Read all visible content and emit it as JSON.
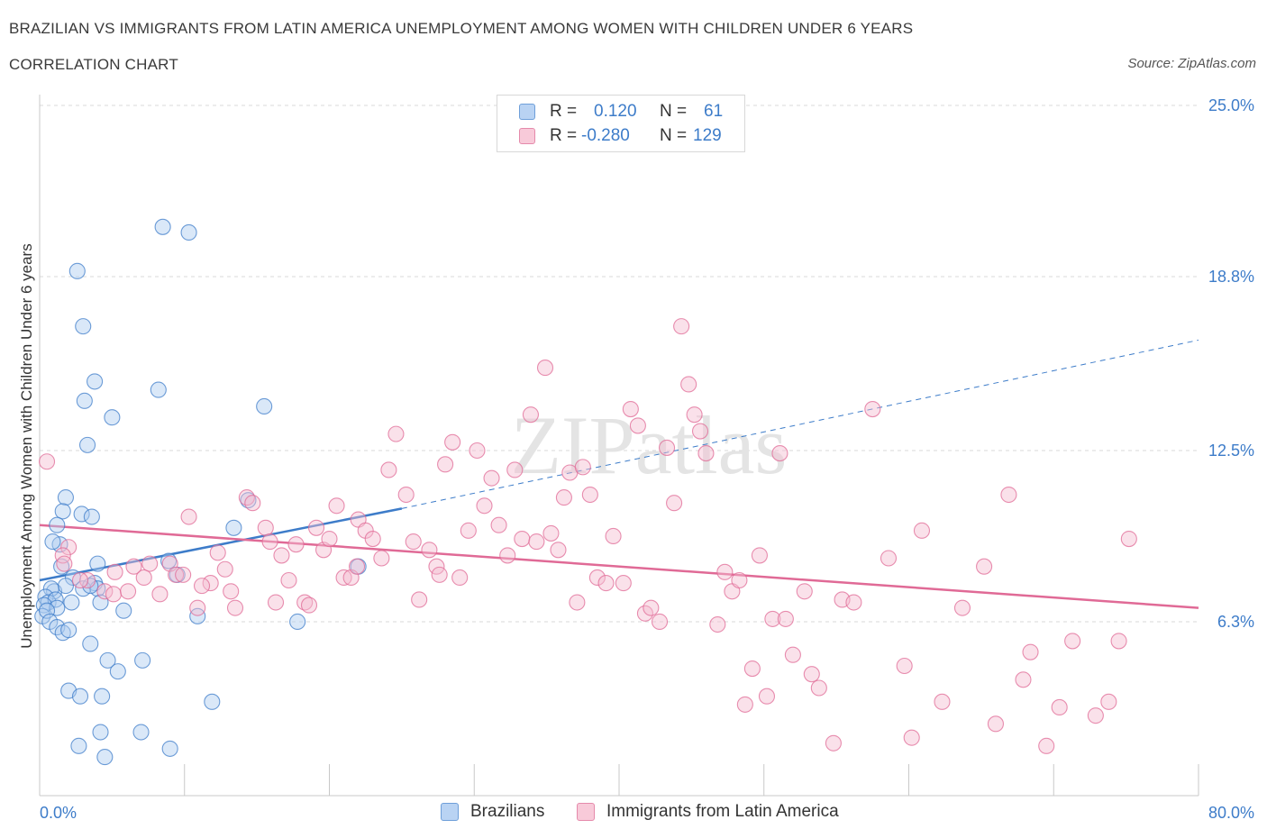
{
  "header": {
    "title": "BRAZILIAN VS IMMIGRANTS FROM LATIN AMERICA UNEMPLOYMENT AMONG WOMEN WITH CHILDREN UNDER 6 YEARS",
    "subtitle": "CORRELATION CHART",
    "source": "Source: ZipAtlas.com"
  },
  "watermark": "ZIPatlas",
  "colors": {
    "blue": "#3d7cc9",
    "blue_fill": "#aecbf0",
    "pink": "#e06a96",
    "pink_fill": "#f5bcd0",
    "grid": "#d9d9d9",
    "tick_label": "#3d7cc9"
  },
  "legend": {
    "rows": [
      {
        "r_label": "R =",
        "r_value": "0.120",
        "n_label": "N =",
        "n_value": "61"
      },
      {
        "r_label": "R =",
        "r_value": "-0.280",
        "n_label": "N =",
        "n_value": "129"
      }
    ]
  },
  "bottom_legend": [
    "Brazilians",
    "Immigrants from Latin America"
  ],
  "chart_data": {
    "type": "scatter",
    "title": "BRAZILIAN VS IMMIGRANTS FROM LATIN AMERICA UNEMPLOYMENT AMONG WOMEN WITH CHILDREN UNDER 6 YEARS",
    "xlabel": "",
    "ylabel": "Unemployment Among Women with Children Under 6 years",
    "xlim": [
      0,
      80
    ],
    "ylim": [
      0,
      25
    ],
    "x_tick_labels": [
      "0.0%",
      "80.0%"
    ],
    "y_tick_values": [
      6.3,
      12.5,
      18.8,
      25.0
    ],
    "y_tick_labels": [
      "6.3%",
      "12.5%",
      "18.8%",
      "25.0%"
    ],
    "grid": true,
    "legend_position": "top-center",
    "series": [
      {
        "name": "Brazilians",
        "color": "#3d7cc9",
        "r": 0.12,
        "n": 61,
        "trend": {
          "x": [
            0,
            25
          ],
          "y": [
            7.8,
            10.4
          ],
          "extended_to": [
            80,
            16.5
          ]
        },
        "points": [
          [
            8.5,
            20.6
          ],
          [
            10.3,
            20.4
          ],
          [
            2.6,
            19.0
          ],
          [
            3.0,
            17.0
          ],
          [
            8.2,
            14.7
          ],
          [
            3.8,
            15.0
          ],
          [
            3.1,
            14.3
          ],
          [
            15.5,
            14.1
          ],
          [
            5.0,
            13.7
          ],
          [
            3.3,
            12.7
          ],
          [
            1.8,
            10.8
          ],
          [
            1.6,
            10.3
          ],
          [
            2.9,
            10.2
          ],
          [
            3.6,
            10.1
          ],
          [
            13.4,
            9.7
          ],
          [
            1.2,
            9.8
          ],
          [
            14.4,
            10.7
          ],
          [
            1.4,
            9.1
          ],
          [
            0.9,
            9.2
          ],
          [
            4.0,
            8.4
          ],
          [
            1.5,
            8.3
          ],
          [
            8.9,
            8.5
          ],
          [
            22.0,
            8.3
          ],
          [
            1.0,
            7.4
          ],
          [
            2.3,
            7.9
          ],
          [
            3.8,
            7.7
          ],
          [
            9.5,
            8.0
          ],
          [
            1.8,
            7.6
          ],
          [
            3.0,
            7.5
          ],
          [
            0.8,
            7.5
          ],
          [
            0.4,
            7.2
          ],
          [
            0.6,
            7.0
          ],
          [
            1.1,
            7.1
          ],
          [
            0.3,
            6.9
          ],
          [
            1.2,
            6.8
          ],
          [
            4.0,
            7.5
          ],
          [
            0.2,
            6.5
          ],
          [
            0.5,
            6.7
          ],
          [
            2.2,
            7.0
          ],
          [
            5.8,
            6.7
          ],
          [
            0.7,
            6.3
          ],
          [
            1.2,
            6.1
          ],
          [
            4.2,
            7.0
          ],
          [
            10.9,
            6.5
          ],
          [
            1.6,
            5.9
          ],
          [
            17.8,
            6.3
          ],
          [
            3.5,
            5.5
          ],
          [
            4.7,
            4.9
          ],
          [
            7.1,
            4.9
          ],
          [
            5.4,
            4.5
          ],
          [
            2.0,
            3.8
          ],
          [
            2.8,
            3.6
          ],
          [
            4.3,
            3.6
          ],
          [
            11.9,
            3.4
          ],
          [
            4.2,
            2.3
          ],
          [
            7.0,
            2.3
          ],
          [
            2.7,
            1.8
          ],
          [
            9.0,
            1.7
          ],
          [
            4.5,
            1.4
          ],
          [
            3.5,
            7.6
          ],
          [
            2.0,
            6.0
          ]
        ]
      },
      {
        "name": "Immigrants from Latin America",
        "color": "#e06a96",
        "r": -0.28,
        "n": 129,
        "trend": {
          "x": [
            0,
            80
          ],
          "y": [
            9.8,
            6.8
          ]
        },
        "points": [
          [
            0.5,
            12.1
          ],
          [
            2.0,
            9.0
          ],
          [
            1.6,
            8.7
          ],
          [
            1.7,
            8.4
          ],
          [
            3.3,
            7.8
          ],
          [
            4.5,
            7.4
          ],
          [
            5.1,
            7.3
          ],
          [
            5.2,
            8.1
          ],
          [
            6.1,
            7.4
          ],
          [
            7.2,
            7.9
          ],
          [
            7.6,
            8.4
          ],
          [
            8.3,
            7.3
          ],
          [
            9.0,
            8.4
          ],
          [
            9.4,
            8.0
          ],
          [
            9.9,
            8.0
          ],
          [
            10.3,
            10.1
          ],
          [
            10.9,
            6.8
          ],
          [
            11.8,
            7.7
          ],
          [
            12.3,
            8.8
          ],
          [
            12.8,
            8.2
          ],
          [
            13.2,
            7.4
          ],
          [
            13.5,
            6.8
          ],
          [
            14.3,
            10.8
          ],
          [
            14.7,
            10.6
          ],
          [
            15.6,
            9.7
          ],
          [
            15.9,
            9.2
          ],
          [
            16.7,
            8.7
          ],
          [
            17.2,
            7.8
          ],
          [
            17.7,
            9.1
          ],
          [
            18.3,
            7.0
          ],
          [
            18.6,
            6.9
          ],
          [
            19.1,
            9.7
          ],
          [
            19.6,
            8.9
          ],
          [
            20.0,
            9.3
          ],
          [
            20.5,
            10.5
          ],
          [
            21.0,
            7.9
          ],
          [
            21.5,
            7.9
          ],
          [
            22.0,
            10.0
          ],
          [
            22.5,
            9.6
          ],
          [
            23.0,
            9.3
          ],
          [
            23.6,
            8.6
          ],
          [
            24.1,
            11.8
          ],
          [
            24.6,
            13.1
          ],
          [
            25.3,
            10.9
          ],
          [
            25.8,
            9.2
          ],
          [
            26.2,
            7.1
          ],
          [
            26.9,
            8.9
          ],
          [
            27.4,
            8.3
          ],
          [
            28.0,
            12.0
          ],
          [
            28.5,
            12.8
          ],
          [
            29.0,
            7.9
          ],
          [
            29.6,
            9.6
          ],
          [
            30.2,
            12.5
          ],
          [
            30.7,
            10.5
          ],
          [
            31.2,
            11.5
          ],
          [
            31.7,
            9.8
          ],
          [
            32.3,
            8.7
          ],
          [
            32.8,
            11.8
          ],
          [
            33.3,
            9.3
          ],
          [
            33.9,
            13.8
          ],
          [
            34.3,
            9.2
          ],
          [
            34.9,
            15.5
          ],
          [
            35.3,
            9.5
          ],
          [
            35.8,
            8.9
          ],
          [
            36.2,
            10.8
          ],
          [
            36.6,
            11.7
          ],
          [
            37.1,
            7.0
          ],
          [
            37.5,
            11.9
          ],
          [
            38.0,
            10.9
          ],
          [
            38.5,
            7.9
          ],
          [
            39.1,
            7.7
          ],
          [
            39.6,
            9.4
          ],
          [
            40.3,
            7.7
          ],
          [
            40.8,
            14.0
          ],
          [
            41.3,
            13.4
          ],
          [
            41.8,
            6.6
          ],
          [
            42.2,
            6.8
          ],
          [
            42.8,
            6.3
          ],
          [
            43.3,
            12.6
          ],
          [
            43.8,
            10.6
          ],
          [
            44.3,
            17.0
          ],
          [
            44.8,
            14.9
          ],
          [
            45.2,
            13.8
          ],
          [
            45.6,
            13.2
          ],
          [
            46.0,
            12.4
          ],
          [
            46.8,
            6.2
          ],
          [
            47.3,
            8.1
          ],
          [
            47.8,
            7.4
          ],
          [
            48.3,
            7.8
          ],
          [
            48.7,
            3.3
          ],
          [
            49.2,
            4.6
          ],
          [
            49.7,
            8.7
          ],
          [
            50.2,
            3.6
          ],
          [
            50.6,
            6.4
          ],
          [
            51.1,
            12.4
          ],
          [
            51.5,
            6.4
          ],
          [
            52.0,
            5.1
          ],
          [
            52.8,
            7.4
          ],
          [
            53.3,
            4.4
          ],
          [
            53.8,
            3.9
          ],
          [
            54.8,
            1.9
          ],
          [
            55.4,
            7.1
          ],
          [
            56.2,
            7.0
          ],
          [
            57.5,
            14.0
          ],
          [
            58.6,
            8.6
          ],
          [
            59.7,
            4.7
          ],
          [
            60.2,
            2.1
          ],
          [
            60.9,
            9.6
          ],
          [
            62.3,
            3.4
          ],
          [
            63.7,
            6.8
          ],
          [
            65.2,
            8.3
          ],
          [
            66.0,
            2.6
          ],
          [
            66.9,
            10.9
          ],
          [
            67.9,
            4.2
          ],
          [
            68.4,
            5.2
          ],
          [
            69.5,
            1.8
          ],
          [
            70.4,
            3.2
          ],
          [
            71.3,
            5.6
          ],
          [
            72.9,
            2.9
          ],
          [
            73.8,
            3.4
          ],
          [
            74.5,
            5.6
          ],
          [
            75.2,
            9.3
          ],
          [
            2.8,
            7.8
          ],
          [
            6.5,
            8.3
          ],
          [
            11.2,
            7.6
          ],
          [
            16.3,
            7.0
          ],
          [
            21.9,
            8.3
          ],
          [
            27.6,
            8.0
          ]
        ]
      }
    ]
  }
}
